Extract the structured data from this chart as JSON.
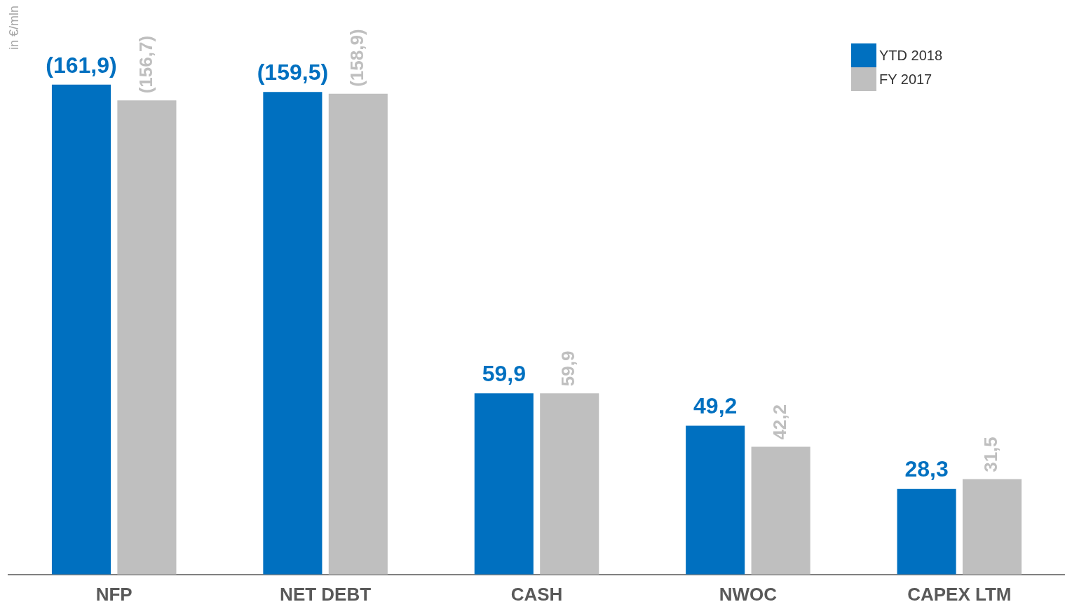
{
  "chart_data": {
    "type": "bar",
    "ylabel": "in €/mln",
    "categories": [
      "NFP",
      "NET DEBT",
      "CASH",
      "NWOC",
      "CAPEX LTM"
    ],
    "series": [
      {
        "name": "YTD 2018",
        "color": "#0070c0",
        "values": [
          161.9,
          159.5,
          59.9,
          49.2,
          28.3
        ],
        "value_labels": [
          "(161,9)",
          "(159,5)",
          "59,9",
          "49,2",
          "28,3"
        ]
      },
      {
        "name": "FY 2017",
        "color": "#bfbfbf",
        "values": [
          156.7,
          158.9,
          59.9,
          42.2,
          31.5
        ],
        "value_labels": [
          "(156,7)",
          "(158,9)",
          "59,9",
          "42,2",
          "31,5"
        ]
      }
    ],
    "legend": "top right",
    "grid": false
  }
}
